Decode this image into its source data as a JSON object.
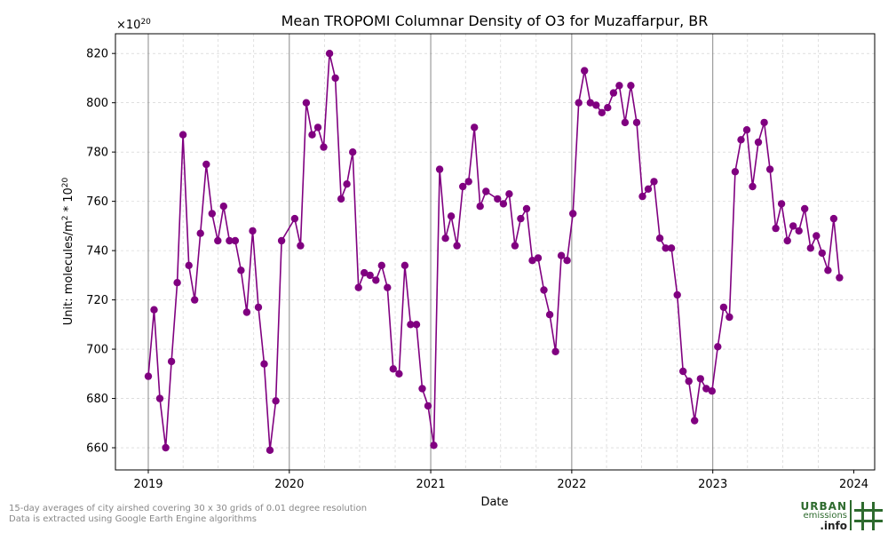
{
  "chart_data": {
    "type": "line",
    "title": "Mean TROPOMI Columnar Density of O3 for Muzaffarpur, BR",
    "xlabel": "Date",
    "ylabel_prefix": "Unit: molecules/m",
    "ylabel_sup1": "2",
    "ylabel_mid": " * 10",
    "ylabel_sup2": "20",
    "offset_base": "×10",
    "offset_exp": "20",
    "xlim": [
      "2018-10-08",
      "2024-02-24"
    ],
    "ylim": [
      651,
      828
    ],
    "yticks": [
      660,
      680,
      700,
      720,
      740,
      760,
      780,
      800,
      820
    ],
    "xticks": [
      {
        "label": "2019",
        "date": "2019-01-01"
      },
      {
        "label": "2020",
        "date": "2020-01-01"
      },
      {
        "label": "2021",
        "date": "2021-01-01"
      },
      {
        "label": "2022",
        "date": "2022-01-01"
      },
      {
        "label": "2023",
        "date": "2023-01-01"
      },
      {
        "label": "2024",
        "date": "2024-01-01"
      }
    ],
    "grid": true,
    "color": "#800080",
    "series": [
      {
        "points": [
          [
            "2019-01-01",
            689
          ],
          [
            "2019-01-16",
            716
          ],
          [
            "2019-01-31",
            680
          ],
          [
            "2019-02-15",
            660
          ],
          [
            "2019-03-02",
            695
          ],
          [
            "2019-03-17",
            727
          ],
          [
            "2019-04-01",
            787
          ],
          [
            "2019-04-16",
            734
          ],
          [
            "2019-05-01",
            720
          ],
          [
            "2019-05-16",
            747
          ],
          [
            "2019-05-31",
            775
          ],
          [
            "2019-06-15",
            755
          ],
          [
            "2019-06-30",
            744
          ],
          [
            "2019-07-15",
            758
          ],
          [
            "2019-07-30",
            744
          ],
          [
            "2019-08-14",
            744
          ],
          [
            "2019-08-29",
            732
          ],
          [
            "2019-09-13",
            715
          ],
          [
            "2019-09-28",
            748
          ],
          [
            "2019-10-13",
            717
          ],
          [
            "2019-10-28",
            694
          ],
          [
            "2019-11-12",
            659
          ],
          [
            "2019-11-27",
            679
          ],
          [
            "2019-12-12",
            744
          ],
          [
            "2020-01-15",
            753
          ],
          [
            "2020-01-30",
            742
          ],
          [
            "2020-02-14",
            800
          ],
          [
            "2020-02-29",
            787
          ],
          [
            "2020-03-15",
            790
          ],
          [
            "2020-03-30",
            782
          ],
          [
            "2020-04-14",
            820
          ],
          [
            "2020-04-29",
            810
          ],
          [
            "2020-05-14",
            761
          ],
          [
            "2020-05-29",
            767
          ],
          [
            "2020-06-13",
            780
          ],
          [
            "2020-06-28",
            725
          ],
          [
            "2020-07-13",
            731
          ],
          [
            "2020-07-28",
            730
          ],
          [
            "2020-08-12",
            728
          ],
          [
            "2020-08-27",
            734
          ],
          [
            "2020-09-11",
            725
          ],
          [
            "2020-09-26",
            692
          ],
          [
            "2020-10-11",
            690
          ],
          [
            "2020-10-26",
            734
          ],
          [
            "2020-11-10",
            710
          ],
          [
            "2020-11-25",
            710
          ],
          [
            "2020-12-10",
            684
          ],
          [
            "2020-12-25",
            677
          ],
          [
            "2021-01-09",
            661
          ],
          [
            "2021-01-24",
            773
          ],
          [
            "2021-02-08",
            745
          ],
          [
            "2021-02-23",
            754
          ],
          [
            "2021-03-10",
            742
          ],
          [
            "2021-03-25",
            766
          ],
          [
            "2021-04-09",
            768
          ],
          [
            "2021-04-24",
            790
          ],
          [
            "2021-05-09",
            758
          ],
          [
            "2021-05-24",
            764
          ],
          [
            "2021-06-23",
            761
          ],
          [
            "2021-07-08",
            759
          ],
          [
            "2021-07-23",
            763
          ],
          [
            "2021-08-07",
            742
          ],
          [
            "2021-08-22",
            753
          ],
          [
            "2021-09-06",
            757
          ],
          [
            "2021-09-21",
            736
          ],
          [
            "2021-10-06",
            737
          ],
          [
            "2021-10-21",
            724
          ],
          [
            "2021-11-05",
            714
          ],
          [
            "2021-11-20",
            699
          ],
          [
            "2021-12-05",
            738
          ],
          [
            "2021-12-20",
            736
          ],
          [
            "2022-01-04",
            755
          ],
          [
            "2022-01-19",
            800
          ],
          [
            "2022-02-03",
            813
          ],
          [
            "2022-02-18",
            800
          ],
          [
            "2022-03-05",
            799
          ],
          [
            "2022-03-20",
            796
          ],
          [
            "2022-04-04",
            798
          ],
          [
            "2022-04-19",
            804
          ],
          [
            "2022-05-04",
            807
          ],
          [
            "2022-05-19",
            792
          ],
          [
            "2022-06-03",
            807
          ],
          [
            "2022-06-18",
            792
          ],
          [
            "2022-07-03",
            762
          ],
          [
            "2022-07-18",
            765
          ],
          [
            "2022-08-02",
            768
          ],
          [
            "2022-08-17",
            745
          ],
          [
            "2022-09-01",
            741
          ],
          [
            "2022-09-16",
            741
          ],
          [
            "2022-10-01",
            722
          ],
          [
            "2022-10-16",
            691
          ],
          [
            "2022-10-31",
            687
          ],
          [
            "2022-11-15",
            671
          ],
          [
            "2022-11-30",
            688
          ],
          [
            "2022-12-15",
            684
          ],
          [
            "2022-12-30",
            683
          ],
          [
            "2023-01-14",
            701
          ],
          [
            "2023-01-29",
            717
          ],
          [
            "2023-02-13",
            713
          ],
          [
            "2023-02-28",
            772
          ],
          [
            "2023-03-15",
            785
          ],
          [
            "2023-03-30",
            789
          ],
          [
            "2023-04-14",
            766
          ],
          [
            "2023-04-29",
            784
          ],
          [
            "2023-05-14",
            792
          ],
          [
            "2023-05-29",
            773
          ],
          [
            "2023-06-13",
            749
          ],
          [
            "2023-06-28",
            759
          ],
          [
            "2023-07-13",
            744
          ],
          [
            "2023-07-28",
            750
          ],
          [
            "2023-08-12",
            748
          ],
          [
            "2023-08-27",
            757
          ],
          [
            "2023-09-11",
            741
          ],
          [
            "2023-09-26",
            746
          ],
          [
            "2023-10-11",
            739
          ],
          [
            "2023-10-26",
            732
          ],
          [
            "2023-11-10",
            753
          ],
          [
            "2023-11-25",
            729
          ]
        ]
      }
    ]
  },
  "footnote": {
    "line1": "15-day averages of city airshed covering 30 x 30 grids of 0.01 degree resolution",
    "line2": "Data is extracted using Google Earth Engine algorithms"
  },
  "logo": {
    "line1": "URBAN",
    "line2": "emissions",
    "line3": ".info",
    "color": "#2e6b2e"
  }
}
